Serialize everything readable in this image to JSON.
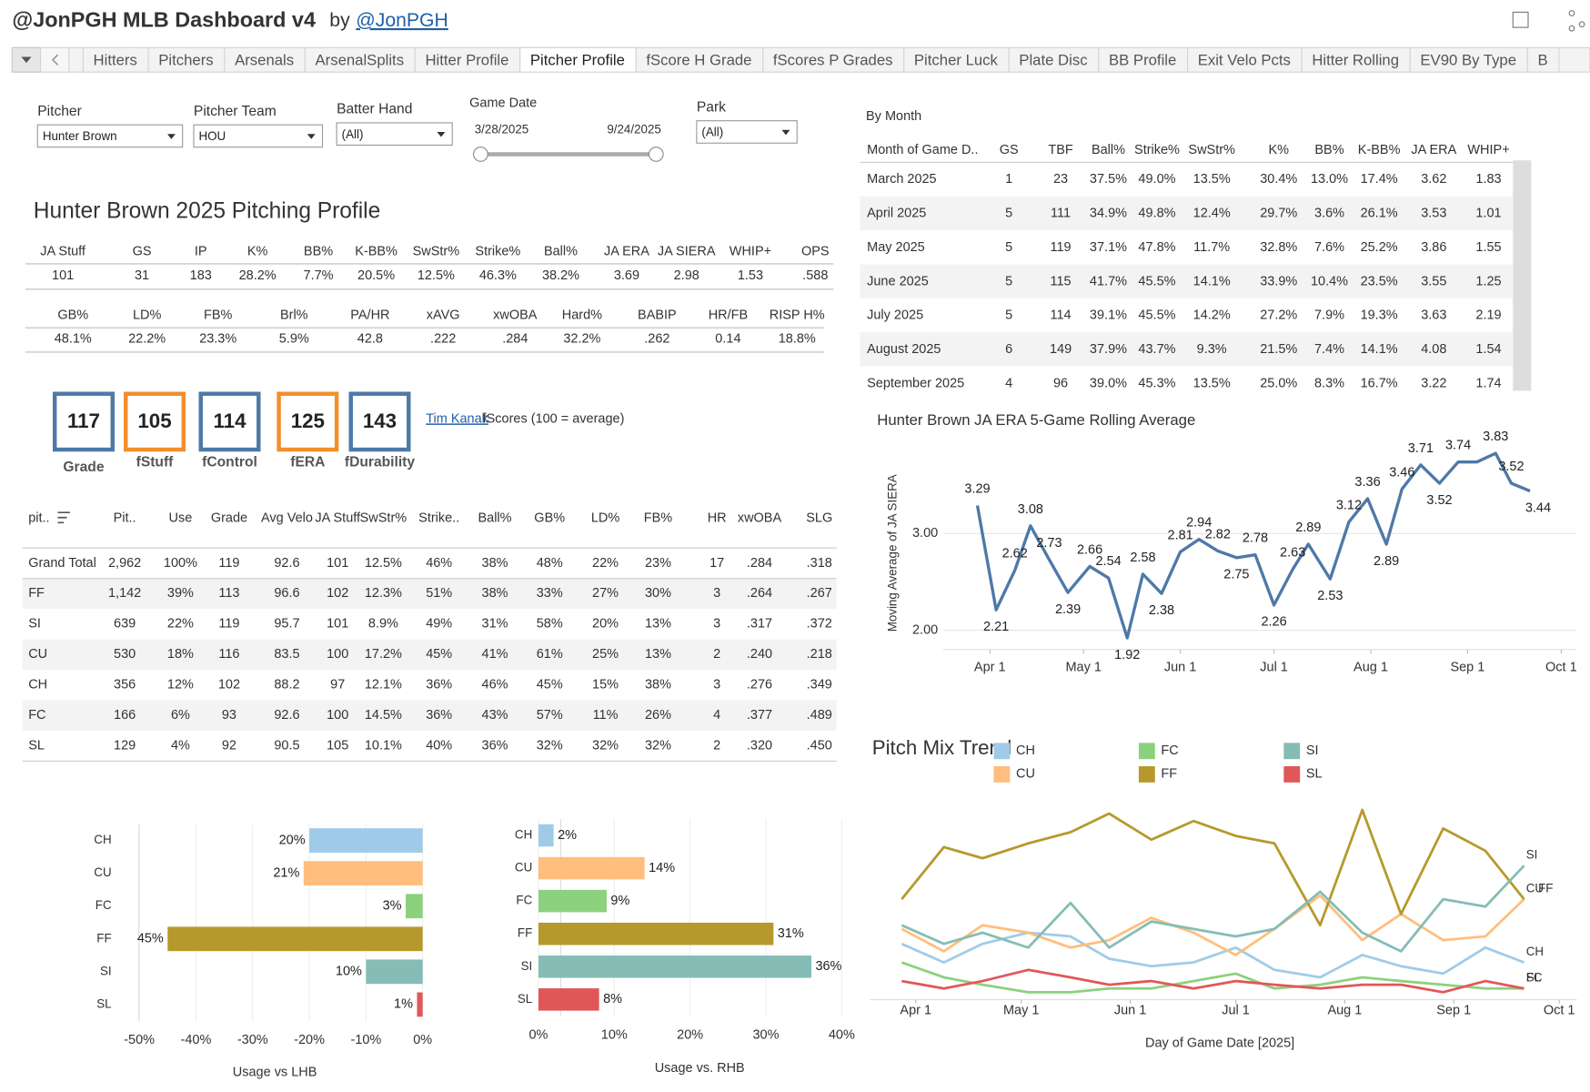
{
  "header": {
    "title": "@JonPGH MLB Dashboard v4",
    "by": "by",
    "author": "@JonPGH"
  },
  "tabs": [
    "Hitters",
    "Pitchers",
    "Arsenals",
    "ArsenalSplits",
    "Hitter Profile",
    "Pitcher Profile",
    "fScore H Grade",
    "fScores P Grades",
    "Pitcher Luck",
    "Plate Disc",
    "BB Profile",
    "Exit Velo Pcts",
    "Hitter Rolling",
    "EV90 By Type",
    "B"
  ],
  "filters": [
    {
      "label": "Pitcher",
      "value": "Hunter Brown"
    },
    {
      "label": "Pitcher Team",
      "value": "HOU"
    },
    {
      "label": "Batter Hand",
      "value": "(All)"
    },
    {
      "label": "Park",
      "value": "(All)"
    }
  ],
  "game_date": {
    "label": "Game Date",
    "start": "3/28/2025",
    "end": "9/24/2025"
  },
  "profile": {
    "title": "Hunter Brown 2025 Pitching Profile",
    "tables": [
      {
        "headers": [
          "JA Stuff",
          "GS",
          "IP",
          "K%",
          "BB%",
          "K-BB%",
          "SwStr%",
          "Strike%",
          "Ball%",
          "JA ERA",
          "JA SIERA",
          "WHIP+",
          "OPS"
        ],
        "values": [
          "101",
          "31",
          "183",
          "28.2%",
          "7.7%",
          "20.5%",
          "12.5%",
          "46.3%",
          "38.2%",
          "3.69",
          "2.98",
          "1.53",
          ".588"
        ]
      },
      {
        "headers": [
          "GB%",
          "LD%",
          "FB%",
          "Brl%",
          "PA/HR",
          "xAVG",
          "xwOBA",
          "Hard%",
          "BABIP",
          "HR/FB",
          "RISP H%"
        ],
        "values": [
          "48.1%",
          "22.2%",
          "23.3%",
          "5.9%",
          "42.8",
          ".222",
          ".284",
          "32.2%",
          ".262",
          "0.14",
          "18.8%"
        ]
      }
    ]
  },
  "fscores": [
    {
      "value": "117",
      "label": "Grade",
      "color": "#4e79a7"
    },
    {
      "value": "105",
      "label": "fStuff",
      "color": "#f28e2b"
    },
    {
      "value": "114",
      "label": "fControl",
      "color": "#4e79a7"
    },
    {
      "value": "125",
      "label": "fERA",
      "color": "#f28e2b"
    },
    {
      "value": "143",
      "label": "fDurability",
      "color": "#4e79a7"
    }
  ],
  "credit": {
    "link": "Tim Kanak",
    "text": "fScores (100 = average)"
  },
  "pitch_table": {
    "headers": [
      "pit..",
      "Pit..",
      "Use",
      "Grade",
      "Avg Velo",
      "JA Stuff",
      "SwStr%",
      "Strike..",
      "Ball%",
      "GB%",
      "LD%",
      "FB%",
      "HR",
      "xwOBA",
      "SLG"
    ],
    "rows": [
      [
        "Grand Total",
        "2,962",
        "100%",
        "119",
        "92.6",
        "101",
        "12.5%",
        "46%",
        "38%",
        "48%",
        "22%",
        "23%",
        "17",
        ".284",
        ".318"
      ],
      [
        "FF",
        "1,142",
        "39%",
        "113",
        "96.6",
        "102",
        "12.3%",
        "51%",
        "38%",
        "33%",
        "27%",
        "30%",
        "3",
        ".264",
        ".267"
      ],
      [
        "SI",
        "639",
        "22%",
        "119",
        "95.7",
        "101",
        "8.9%",
        "49%",
        "31%",
        "58%",
        "20%",
        "13%",
        "3",
        ".317",
        ".372"
      ],
      [
        "CU",
        "530",
        "18%",
        "116",
        "83.5",
        "100",
        "17.2%",
        "45%",
        "41%",
        "61%",
        "25%",
        "13%",
        "2",
        ".240",
        ".218"
      ],
      [
        "CH",
        "356",
        "12%",
        "102",
        "88.2",
        "97",
        "12.1%",
        "36%",
        "46%",
        "45%",
        "15%",
        "38%",
        "3",
        ".276",
        ".349"
      ],
      [
        "FC",
        "166",
        "6%",
        "93",
        "92.6",
        "100",
        "14.5%",
        "36%",
        "43%",
        "57%",
        "11%",
        "26%",
        "4",
        ".377",
        ".489"
      ],
      [
        "SL",
        "129",
        "4%",
        "92",
        "90.5",
        "105",
        "10.1%",
        "40%",
        "36%",
        "32%",
        "32%",
        "32%",
        "2",
        ".320",
        ".450"
      ]
    ]
  },
  "by_month": {
    "title": "By Month",
    "headers": [
      "Month of Game D..",
      "GS",
      "TBF",
      "Ball%",
      "Strike%",
      "SwStr%",
      "K%",
      "BB%",
      "K-BB%",
      "JA ERA",
      "WHIP+"
    ],
    "rows": [
      [
        "March 2025",
        "1",
        "23",
        "37.5%",
        "49.0%",
        "13.5%",
        "30.4%",
        "13.0%",
        "17.4%",
        "3.62",
        "1.83"
      ],
      [
        "April 2025",
        "5",
        "111",
        "34.9%",
        "49.8%",
        "12.4%",
        "29.7%",
        "3.6%",
        "26.1%",
        "3.53",
        "1.01"
      ],
      [
        "May 2025",
        "5",
        "119",
        "37.1%",
        "47.8%",
        "11.7%",
        "32.8%",
        "7.6%",
        "25.2%",
        "3.86",
        "1.55"
      ],
      [
        "June 2025",
        "5",
        "115",
        "41.7%",
        "45.5%",
        "14.1%",
        "33.9%",
        "10.4%",
        "23.5%",
        "3.55",
        "1.25"
      ],
      [
        "July 2025",
        "5",
        "114",
        "39.1%",
        "45.5%",
        "14.2%",
        "27.2%",
        "7.9%",
        "19.3%",
        "3.63",
        "2.19"
      ],
      [
        "August 2025",
        "6",
        "149",
        "37.9%",
        "43.7%",
        "9.3%",
        "21.5%",
        "7.4%",
        "14.1%",
        "4.08",
        "1.54"
      ],
      [
        "September 2025",
        "4",
        "96",
        "39.0%",
        "45.3%",
        "13.5%",
        "25.0%",
        "8.3%",
        "16.7%",
        "3.22",
        "1.74"
      ]
    ]
  },
  "chart_data": [
    {
      "type": "line",
      "title": "Hunter Brown JA ERA 5-Game Rolling Average",
      "ylabel": "Moving Average of JA SIERA",
      "color": "#4e79a7",
      "x": [
        "2025-03-28",
        "2025-04-03",
        "2025-04-09",
        "2025-04-14",
        "2025-04-20",
        "2025-04-26",
        "2025-05-03",
        "2025-05-09",
        "2025-05-15",
        "2025-05-20",
        "2025-05-26",
        "2025-06-01",
        "2025-06-07",
        "2025-06-13",
        "2025-06-19",
        "2025-06-25",
        "2025-07-01",
        "2025-07-07",
        "2025-07-12",
        "2025-07-19",
        "2025-07-25",
        "2025-07-31",
        "2025-08-06",
        "2025-08-11",
        "2025-08-17",
        "2025-08-23",
        "2025-08-29",
        "2025-09-04",
        "2025-09-10",
        "2025-09-15",
        "2025-09-21"
      ],
      "values": [
        3.29,
        2.21,
        2.62,
        3.08,
        2.73,
        2.39,
        2.66,
        2.54,
        1.92,
        2.58,
        2.38,
        2.81,
        2.94,
        2.82,
        2.75,
        2.78,
        2.26,
        2.63,
        2.89,
        2.53,
        3.12,
        3.36,
        2.89,
        3.46,
        3.71,
        3.52,
        3.74,
        3.74,
        3.83,
        3.52,
        3.44
      ],
      "value_labels": [
        "3.29",
        "2.21",
        "2.62",
        "3.08",
        "2.73",
        "2.39",
        "2.66",
        "2.54",
        "1.92",
        "2.58",
        "2.38",
        "2.81",
        "2.94",
        "2.82",
        "2.75",
        "2.78",
        "2.26",
        "2.63",
        "2.89",
        "2.53",
        "3.12",
        "3.36",
        "2.89",
        "3.46",
        "3.71",
        "3.52",
        "3.74",
        null,
        "3.83",
        "3.52",
        "3.44"
      ],
      "xlim": [
        "2025-03-17",
        "2025-10-06"
      ],
      "xticks": [
        {
          "value": "2025-04-01",
          "label": "Apr 1"
        },
        {
          "value": "2025-05-01",
          "label": "May 1"
        },
        {
          "value": "2025-06-01",
          "label": "Jun 1"
        },
        {
          "value": "2025-07-01",
          "label": "Jul 1"
        },
        {
          "value": "2025-08-01",
          "label": "Aug 1"
        },
        {
          "value": "2025-09-01",
          "label": "Sep 1"
        },
        {
          "value": "2025-10-01",
          "label": "Oct 1"
        }
      ],
      "ylim": [
        1.8,
        3.9
      ],
      "yticks": [
        {
          "value": 2,
          "label": "2.00"
        },
        {
          "value": 3,
          "label": "3.00"
        }
      ],
      "grid": true
    },
    {
      "type": "line",
      "title": "Pitch Mix Trend",
      "xlabel": "Day of Game Date [2025]",
      "x": [
        "2025-03-28",
        "2025-04-09",
        "2025-04-20",
        "2025-05-03",
        "2025-05-15",
        "2025-05-26",
        "2025-06-07",
        "2025-06-19",
        "2025-07-01",
        "2025-07-12",
        "2025-07-25",
        "2025-08-06",
        "2025-08-17",
        "2025-08-29",
        "2025-09-10",
        "2025-09-21"
      ],
      "series": [
        {
          "name": "CH",
          "color": "#a0cbe8",
          "values": [
            15,
            10,
            15,
            18,
            17,
            11,
            9,
            10,
            14,
            8,
            6,
            12,
            9,
            7,
            14,
            10
          ]
        },
        {
          "name": "CU",
          "color": "#ffbe7d",
          "values": [
            19,
            13,
            20,
            18,
            14,
            16,
            22,
            18,
            12,
            19,
            28,
            16,
            23,
            16,
            17,
            27
          ]
        },
        {
          "name": "FC",
          "color": "#8cd17d",
          "values": [
            10,
            6,
            4,
            2,
            2,
            3,
            3,
            5,
            7,
            3,
            4,
            6,
            5,
            4,
            3,
            3
          ]
        },
        {
          "name": "FF",
          "color": "#b6992d",
          "values": [
            27,
            41,
            38,
            42,
            45,
            50,
            43,
            48,
            44,
            42,
            20,
            51,
            23,
            46,
            40,
            27
          ]
        },
        {
          "name": "SI",
          "color": "#86bcb6",
          "values": [
            20,
            15,
            18,
            14,
            26,
            14,
            21,
            19,
            17,
            19,
            29,
            18,
            13,
            27,
            25,
            36
          ]
        },
        {
          "name": "SL",
          "color": "#e15759",
          "values": [
            5,
            3,
            5,
            8,
            6,
            4,
            5,
            3,
            5,
            4,
            3,
            4,
            4,
            2,
            5,
            3
          ]
        }
      ],
      "xlim": [
        "2025-03-19",
        "2025-10-06"
      ],
      "xticks": [
        {
          "value": "2025-04-01",
          "label": "Apr 1"
        },
        {
          "value": "2025-05-01",
          "label": "May 1"
        },
        {
          "value": "2025-06-01",
          "label": "Jun 1"
        },
        {
          "value": "2025-07-01",
          "label": "Jul 1"
        },
        {
          "value": "2025-08-01",
          "label": "Aug 1"
        },
        {
          "value": "2025-09-01",
          "label": "Sep 1"
        },
        {
          "value": "2025-10-01",
          "label": "Oct 1"
        }
      ],
      "ylim": [
        0,
        60
      ]
    },
    {
      "type": "bar",
      "orientation": "horizontal",
      "xlabel": "Usage vs LHB",
      "categories": [
        "CH",
        "CU",
        "FC",
        "FF",
        "SI",
        "SL"
      ],
      "values": [
        -20,
        -21,
        -3,
        -45,
        -10,
        -1
      ],
      "value_labels": [
        "20%",
        "21%",
        "3%",
        "45%",
        "10%",
        "1%"
      ],
      "colors": [
        "#a0cbe8",
        "#ffbe7d",
        "#8cd17d",
        "#b6992d",
        "#86bcb6",
        "#e15759"
      ],
      "xlim": [
        -54,
        2
      ],
      "xticks": [
        {
          "value": -50,
          "label": "-50%"
        },
        {
          "value": -40,
          "label": "-40%"
        },
        {
          "value": -30,
          "label": "-30%"
        },
        {
          "value": -20,
          "label": "-20%"
        },
        {
          "value": -10,
          "label": "-10%"
        },
        {
          "value": 0,
          "label": "0%"
        }
      ],
      "grid": true
    },
    {
      "type": "bar",
      "orientation": "horizontal",
      "xlabel": "Usage vs. RHB",
      "categories": [
        "CH",
        "CU",
        "FC",
        "FF",
        "SI",
        "SL"
      ],
      "values": [
        2,
        14,
        9,
        31,
        36,
        8
      ],
      "value_labels": [
        "2%",
        "14%",
        "9%",
        "31%",
        "36%",
        "8%"
      ],
      "colors": [
        "#a0cbe8",
        "#ffbe7d",
        "#8cd17d",
        "#b6992d",
        "#86bcb6",
        "#e15759"
      ],
      "xlim": [
        0,
        42
      ],
      "xticks": [
        {
          "value": 0,
          "label": "0%"
        },
        {
          "value": 10,
          "label": "10%"
        },
        {
          "value": 20,
          "label": "20%"
        },
        {
          "value": 30,
          "label": "30%"
        },
        {
          "value": 40,
          "label": "40%"
        }
      ],
      "grid": true
    }
  ]
}
